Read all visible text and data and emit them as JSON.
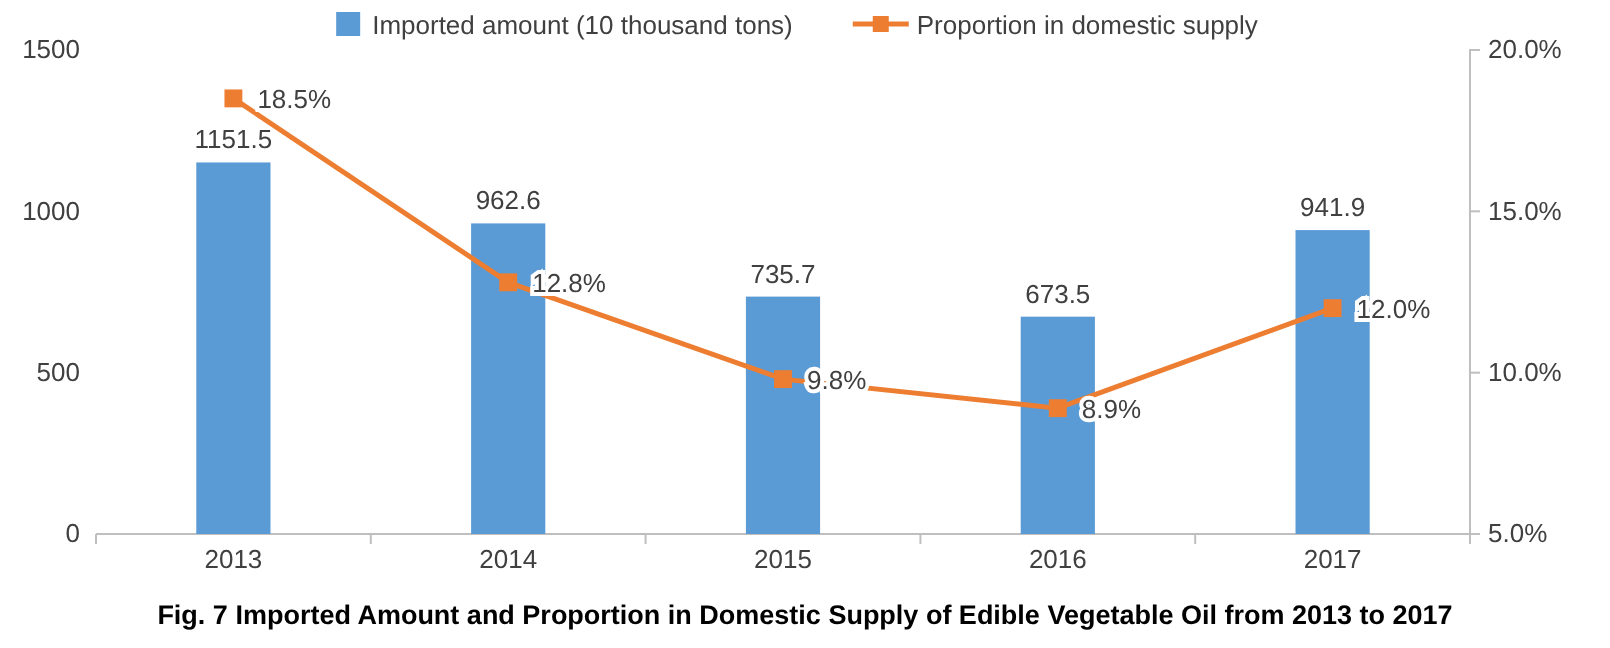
{
  "chart_data": {
    "type": "bar",
    "title": "Fig. 7 Imported Amount and Proportion in Domestic Supply of Edible Vegetable Oil from 2013 to 2017",
    "categories": [
      "2013",
      "2014",
      "2015",
      "2016",
      "2017"
    ],
    "series": [
      {
        "name": "Imported amount (10 thousand tons)",
        "color": "#5b9bd5",
        "values": [
          1151.5,
          962.6,
          735.7,
          673.5,
          941.9
        ],
        "value_labels": [
          "1151.5",
          "962.6",
          "735.7",
          "673.5",
          "941.9"
        ]
      },
      {
        "name": "Proportion in domestic supply",
        "type": "line",
        "axis": "y2",
        "color": "#ed7d31",
        "marker": "square",
        "values": [
          18.5,
          12.8,
          9.8,
          8.9,
          12.0
        ],
        "value_labels": [
          "18.5%",
          "12.8%",
          "9.8%",
          "8.9%",
          "12.0%"
        ]
      }
    ],
    "ylim": [
      0,
      1500
    ],
    "yticks": [
      0,
      500,
      1000,
      1500
    ],
    "y2lim": [
      5,
      20
    ],
    "y2ticks": [
      {
        "value": 5,
        "label": "5.0%"
      },
      {
        "value": 10,
        "label": "10.0%"
      },
      {
        "value": 15,
        "label": "15.0%"
      },
      {
        "value": 20,
        "label": "20.0%"
      }
    ],
    "legend": "top",
    "grid": false
  }
}
